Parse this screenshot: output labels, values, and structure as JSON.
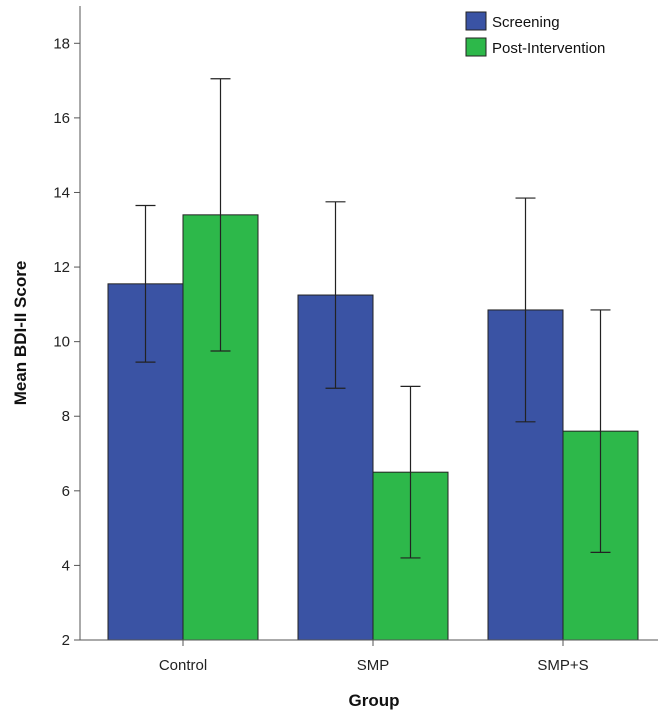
{
  "chart_data": {
    "type": "bar",
    "title": "",
    "xlabel": "Group",
    "ylabel": "Mean BDI-II Score",
    "categories": [
      "Control",
      "SMP",
      "SMP+S"
    ],
    "ylim": [
      2,
      19
    ],
    "yticks": [
      2,
      4,
      6,
      8,
      10,
      12,
      14,
      16,
      18
    ],
    "grid": false,
    "legend_position": "top-right",
    "series": [
      {
        "name": "Screening",
        "color": "#3a53a4",
        "values": [
          11.55,
          11.25,
          10.85
        ],
        "error_low": [
          9.45,
          8.75,
          7.85
        ],
        "error_high": [
          13.65,
          13.75,
          13.85
        ]
      },
      {
        "name": "Post-Intervention",
        "color": "#2db84a",
        "values": [
          13.4,
          6.5,
          7.6
        ],
        "error_low": [
          9.75,
          4.2,
          4.35
        ],
        "error_high": [
          17.05,
          8.8,
          10.85
        ]
      }
    ]
  }
}
